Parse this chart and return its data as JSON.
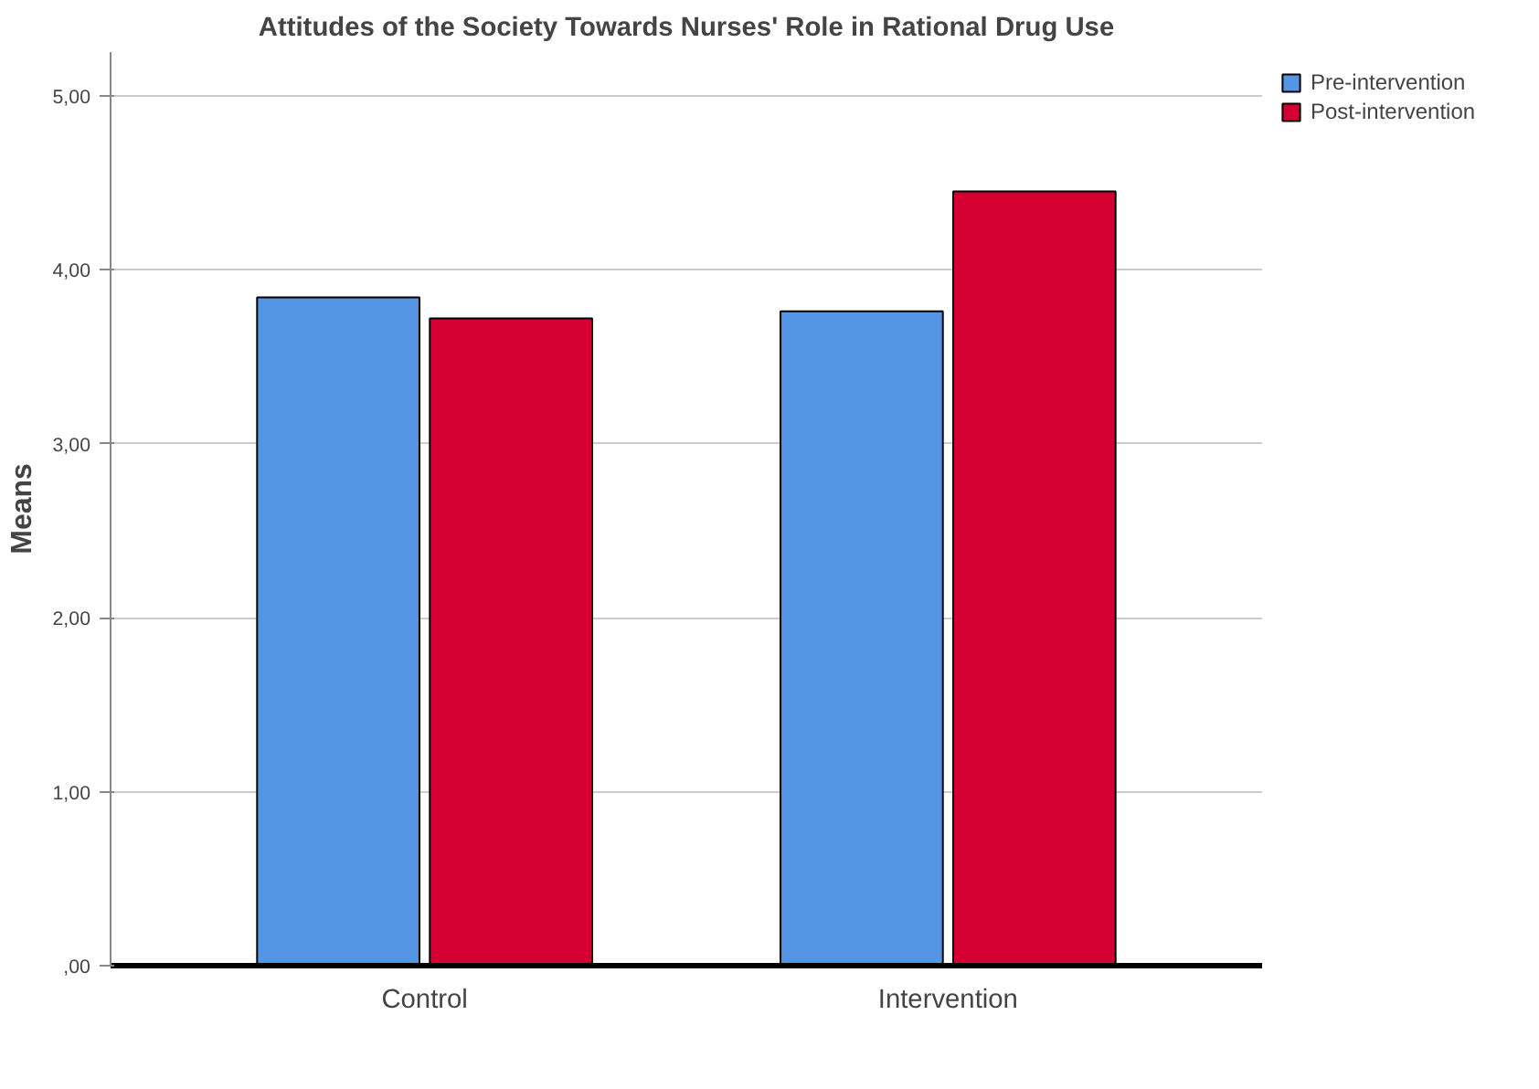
{
  "chart_data": {
    "type": "bar",
    "title": "Attitudes of the Society Towards Nurses' Role in Rational Drug Use",
    "ylabel": "Means",
    "categories": [
      "Control",
      "Intervention"
    ],
    "series": [
      {
        "name": "Pre-intervention",
        "color": "#5595e5",
        "values": [
          3.84,
          3.76
        ]
      },
      {
        "name": "Post-intervention",
        "color": "#d50032",
        "values": [
          3.72,
          4.45
        ]
      }
    ],
    "ylim": [
      0,
      5.25
    ],
    "yticks": [
      {
        "value": 0,
        "label": ",00"
      },
      {
        "value": 1,
        "label": "1,00"
      },
      {
        "value": 2,
        "label": "2,00"
      },
      {
        "value": 3,
        "label": "3,00"
      },
      {
        "value": 4,
        "label": "4,00"
      },
      {
        "value": 5,
        "label": "5,00"
      }
    ],
    "grid": "y",
    "legend": "top right"
  }
}
